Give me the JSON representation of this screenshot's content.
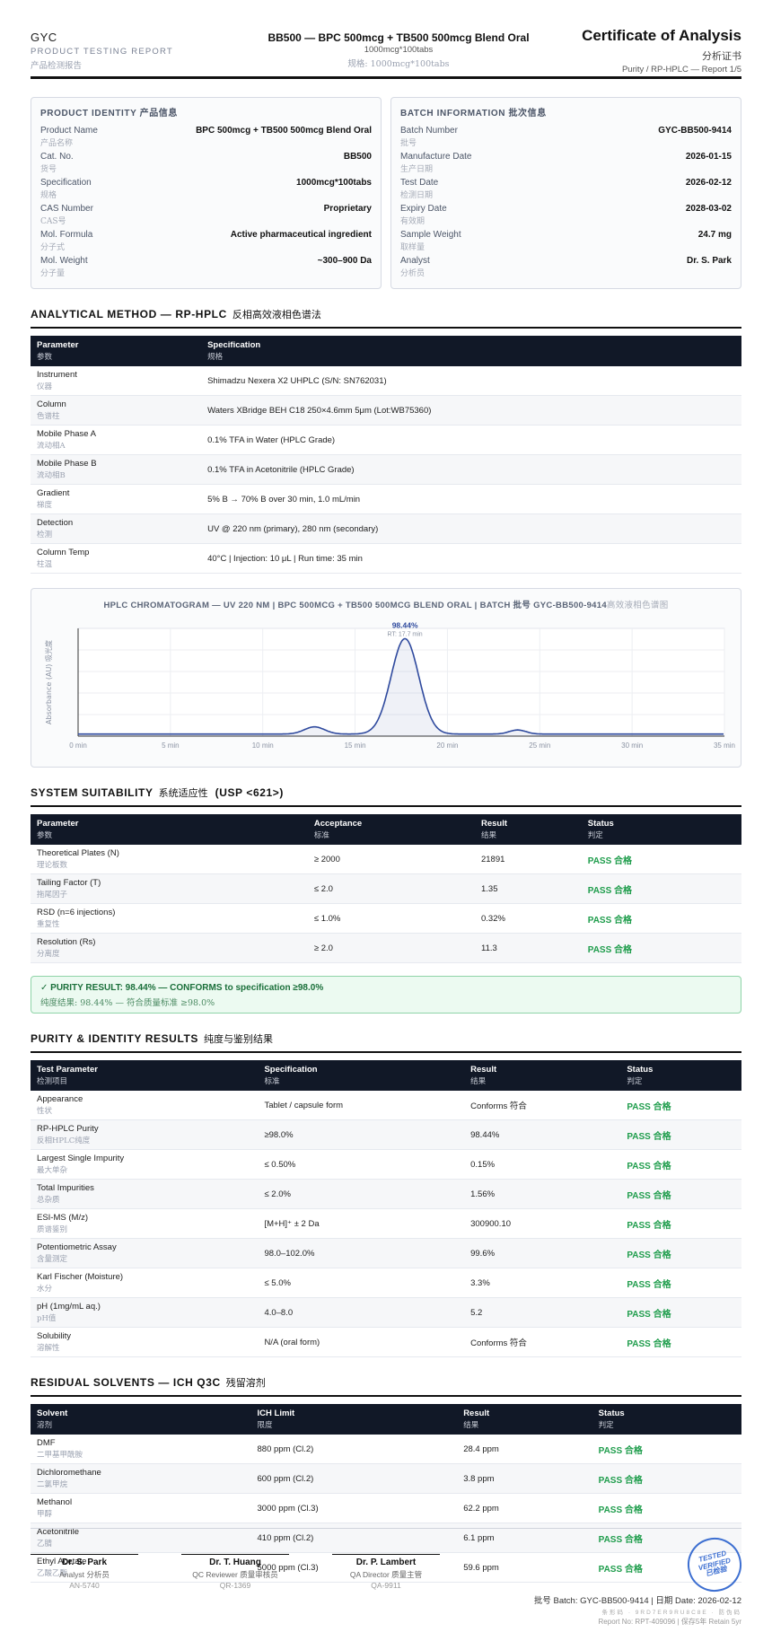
{
  "header": {
    "brand": "GYC",
    "report_label": "PRODUCT TESTING REPORT",
    "report_label_cn": "产品检测报告",
    "product_title": "BB500 — BPC 500mcg + TB500 500mcg Blend Oral",
    "product_spec": "1000mcg*100tabs",
    "product_spec_cn": "规格: 1000mcg*100tabs",
    "doc_title": "Certificate of Analysis",
    "doc_title_cn": "分析证书",
    "doc_ref": "Purity / RP-HPLC — Report 1/5"
  },
  "identity": {
    "title": "PRODUCT IDENTITY",
    "title_cn": "产品信息",
    "rows": [
      {
        "label": "Product Name",
        "cn": "产品名称",
        "value": "BPC 500mcg + TB500 500mcg Blend Oral"
      },
      {
        "label": "Cat. No.",
        "cn": "货号",
        "value": "BB500"
      },
      {
        "label": "Specification",
        "cn": "规格",
        "value": "1000mcg*100tabs"
      },
      {
        "label": "CAS Number",
        "cn": "CAS号",
        "value": "Proprietary"
      },
      {
        "label": "Mol. Formula",
        "cn": "分子式",
        "value": "Active pharmaceutical ingredient"
      },
      {
        "label": "Mol. Weight",
        "cn": "分子量",
        "value": "~300–900 Da"
      }
    ]
  },
  "batch": {
    "title": "BATCH INFORMATION",
    "title_cn": "批次信息",
    "rows": [
      {
        "label": "Batch Number",
        "cn": "批号",
        "value": "GYC-BB500-9414"
      },
      {
        "label": "Manufacture Date",
        "cn": "生产日期",
        "value": "2026-01-15"
      },
      {
        "label": "Test Date",
        "cn": "检测日期",
        "value": "2026-02-12"
      },
      {
        "label": "Expiry Date",
        "cn": "有效期",
        "value": "2028-03-02"
      },
      {
        "label": "Sample Weight",
        "cn": "取样量",
        "value": "24.7 mg"
      },
      {
        "label": "Analyst",
        "cn": "分析员",
        "value": "Dr. S. Park"
      }
    ]
  },
  "method": {
    "title": "ANALYTICAL METHOD — RP-HPLC",
    "title_cn": "反相高效液相色谱法",
    "headers": [
      {
        "en": "Parameter",
        "cn": "参数"
      },
      {
        "en": "Specification",
        "cn": "规格"
      }
    ],
    "rows": [
      {
        "p": "Instrument",
        "cn": "仪器",
        "s": "Shimadzu Nexera X2 UHPLC (S/N: SN762031)"
      },
      {
        "p": "Column",
        "cn": "色谱柱",
        "s": "Waters XBridge BEH C18 250×4.6mm 5μm (Lot:WB75360)"
      },
      {
        "p": "Mobile Phase A",
        "cn": "流动相A",
        "s": "0.1% TFA in Water (HPLC Grade)"
      },
      {
        "p": "Mobile Phase B",
        "cn": "流动相B",
        "s": "0.1% TFA in Acetonitrile (HPLC Grade)"
      },
      {
        "p": "Gradient",
        "cn": "梯度",
        "s": "5% B → 70% B over 30 min, 1.0 mL/min"
      },
      {
        "p": "Detection",
        "cn": "检测",
        "s": "UV @ 220 nm (primary), 280 nm (secondary)"
      },
      {
        "p": "Column Temp",
        "cn": "柱温",
        "s": "40°C | Injection: 10 μL | Run time: 35 min"
      }
    ]
  },
  "chart_data": {
    "type": "line",
    "title": "HPLC CHROMATOGRAM — UV 220 NM | BPC 500MCG + TB500 500MCG BLEND ORAL | BATCH 批号 GYC-BB500-9414",
    "title_cn": "高效液相色谱图",
    "ylabel": "Absorbance (AU) 吸光度",
    "xlabel": "",
    "x_ticks": [
      "0 min",
      "5 min",
      "10 min",
      "15 min",
      "20 min",
      "25 min",
      "30 min",
      "35 min"
    ],
    "xlim": [
      0,
      35
    ],
    "ylim": [
      0,
      1.05
    ],
    "grid": true,
    "peak_label": "98.44%",
    "peak_rt_label": "RT: 17.7 min",
    "peaks": [
      {
        "rt": 12.8,
        "height": 0.07,
        "width": 0.55
      },
      {
        "rt": 17.7,
        "height": 0.93,
        "width": 0.75
      },
      {
        "rt": 23.8,
        "height": 0.04,
        "width": 0.45
      }
    ],
    "baseline": 0.02,
    "color": "#2f4a9e"
  },
  "suitability": {
    "title": "SYSTEM SUITABILITY",
    "title_cn": "系统适应性",
    "usp": "(USP <621>)",
    "headers": [
      {
        "en": "Parameter",
        "cn": "参数"
      },
      {
        "en": "Acceptance",
        "cn": "标准"
      },
      {
        "en": "Result",
        "cn": "结果"
      },
      {
        "en": "Status",
        "cn": "判定"
      }
    ],
    "rows": [
      {
        "p": "Theoretical Plates (N)",
        "cn": "理论板数",
        "a": "≥ 2000",
        "r": "21891",
        "s": "PASS 合格"
      },
      {
        "p": "Tailing Factor (T)",
        "cn": "拖尾因子",
        "a": "≤ 2.0",
        "r": "1.35",
        "s": "PASS 合格"
      },
      {
        "p": "RSD (n=6 injections)",
        "cn": "重复性",
        "a": "≤ 1.0%",
        "r": "0.32%",
        "s": "PASS 合格"
      },
      {
        "p": "Resolution (Rs)",
        "cn": "分离度",
        "a": "≥ 2.0",
        "r": "11.3",
        "s": "PASS 合格"
      }
    ]
  },
  "purity_banner": {
    "line1": "✓ PURITY RESULT: 98.44% — CONFORMS to specification ≥98.0%",
    "line2": "纯度结果: 98.44% — 符合质量标准 ≥98.0%"
  },
  "purity": {
    "title": "PURITY & IDENTITY RESULTS",
    "title_cn": "纯度与鉴别结果",
    "headers": [
      {
        "en": "Test Parameter",
        "cn": "检测项目"
      },
      {
        "en": "Specification",
        "cn": "标准"
      },
      {
        "en": "Result",
        "cn": "结果"
      },
      {
        "en": "Status",
        "cn": "判定"
      }
    ],
    "rows": [
      {
        "p": "Appearance",
        "cn": "性状",
        "a": "Tablet / capsule form",
        "r": "Conforms 符合",
        "s": "PASS 合格"
      },
      {
        "p": "RP-HPLC Purity",
        "cn": "反相HPLC纯度",
        "a": "≥98.0%",
        "r": "98.44%",
        "s": "PASS 合格"
      },
      {
        "p": "Largest Single Impurity",
        "cn": "最大单杂",
        "a": "≤ 0.50%",
        "r": "0.15%",
        "s": "PASS 合格"
      },
      {
        "p": "Total Impurities",
        "cn": "总杂质",
        "a": "≤ 2.0%",
        "r": "1.56%",
        "s": "PASS 合格"
      },
      {
        "p": "ESI-MS (M/z)",
        "cn": "质谱鉴别",
        "a": "[M+H]⁺ ± 2 Da",
        "r": "300900.10",
        "s": "PASS 合格"
      },
      {
        "p": "Potentiometric Assay",
        "cn": "含量测定",
        "a": "98.0–102.0%",
        "r": "99.6%",
        "s": "PASS 合格"
      },
      {
        "p": "Karl Fischer (Moisture)",
        "cn": "水分",
        "a": "≤ 5.0%",
        "r": "3.3%",
        "s": "PASS 合格"
      },
      {
        "p": "pH (1mg/mL aq.)",
        "cn": "pH值",
        "a": "4.0–8.0",
        "r": "5.2",
        "s": "PASS 合格"
      },
      {
        "p": "Solubility",
        "cn": "溶解性",
        "a": "N/A (oral form)",
        "r": "Conforms 符合",
        "s": "PASS 合格"
      }
    ]
  },
  "solvents": {
    "title": "RESIDUAL SOLVENTS — ICH Q3C",
    "title_cn": "残留溶剂",
    "headers": [
      {
        "en": "Solvent",
        "cn": "溶剂"
      },
      {
        "en": "ICH Limit",
        "cn": "限度"
      },
      {
        "en": "Result",
        "cn": "结果"
      },
      {
        "en": "Status",
        "cn": "判定"
      }
    ],
    "rows": [
      {
        "p": "DMF",
        "cn": "二甲基甲酰胺",
        "a": "880 ppm (Cl.2)",
        "r": "28.4 ppm",
        "s": "PASS 合格"
      },
      {
        "p": "Dichloromethane",
        "cn": "二氯甲烷",
        "a": "600 ppm (Cl.2)",
        "r": "3.8 ppm",
        "s": "PASS 合格"
      },
      {
        "p": "Methanol",
        "cn": "甲醇",
        "a": "3000 ppm (Cl.3)",
        "r": "62.2 ppm",
        "s": "PASS 合格"
      },
      {
        "p": "Acetonitrile",
        "cn": "乙腈",
        "a": "410 ppm (Cl.2)",
        "r": "6.1 ppm",
        "s": "PASS 合格"
      },
      {
        "p": "Ethyl Acetate",
        "cn": "乙酸乙酯",
        "a": "5000 ppm (Cl.3)",
        "r": "59.6 ppm",
        "s": "PASS 合格"
      }
    ]
  },
  "signatures": [
    {
      "name": "Dr. S. Park",
      "role": "Analyst 分析员",
      "id": "AN-5740"
    },
    {
      "name": "Dr. T. Huang",
      "role": "QC Reviewer 质量审核员",
      "id": "QR-1369"
    },
    {
      "name": "Dr. P. Lambert",
      "role": "QA Director 质量主管",
      "id": "QA-9911"
    }
  ],
  "stamp": {
    "l1": "TESTED",
    "l2": "VERIFIED",
    "l3": "已检验",
    "color": "#3d6fd1"
  },
  "footer": {
    "batch_line": "批号 Batch: GYC-BB500-9414 | 日期 Date: 2026-02-12",
    "code_line": "条形码 · 9RD7ER9RU8C8E · 防伪码",
    "report_line": "Report No: RPT-409096 | 保存5年 Retain 5yr"
  }
}
